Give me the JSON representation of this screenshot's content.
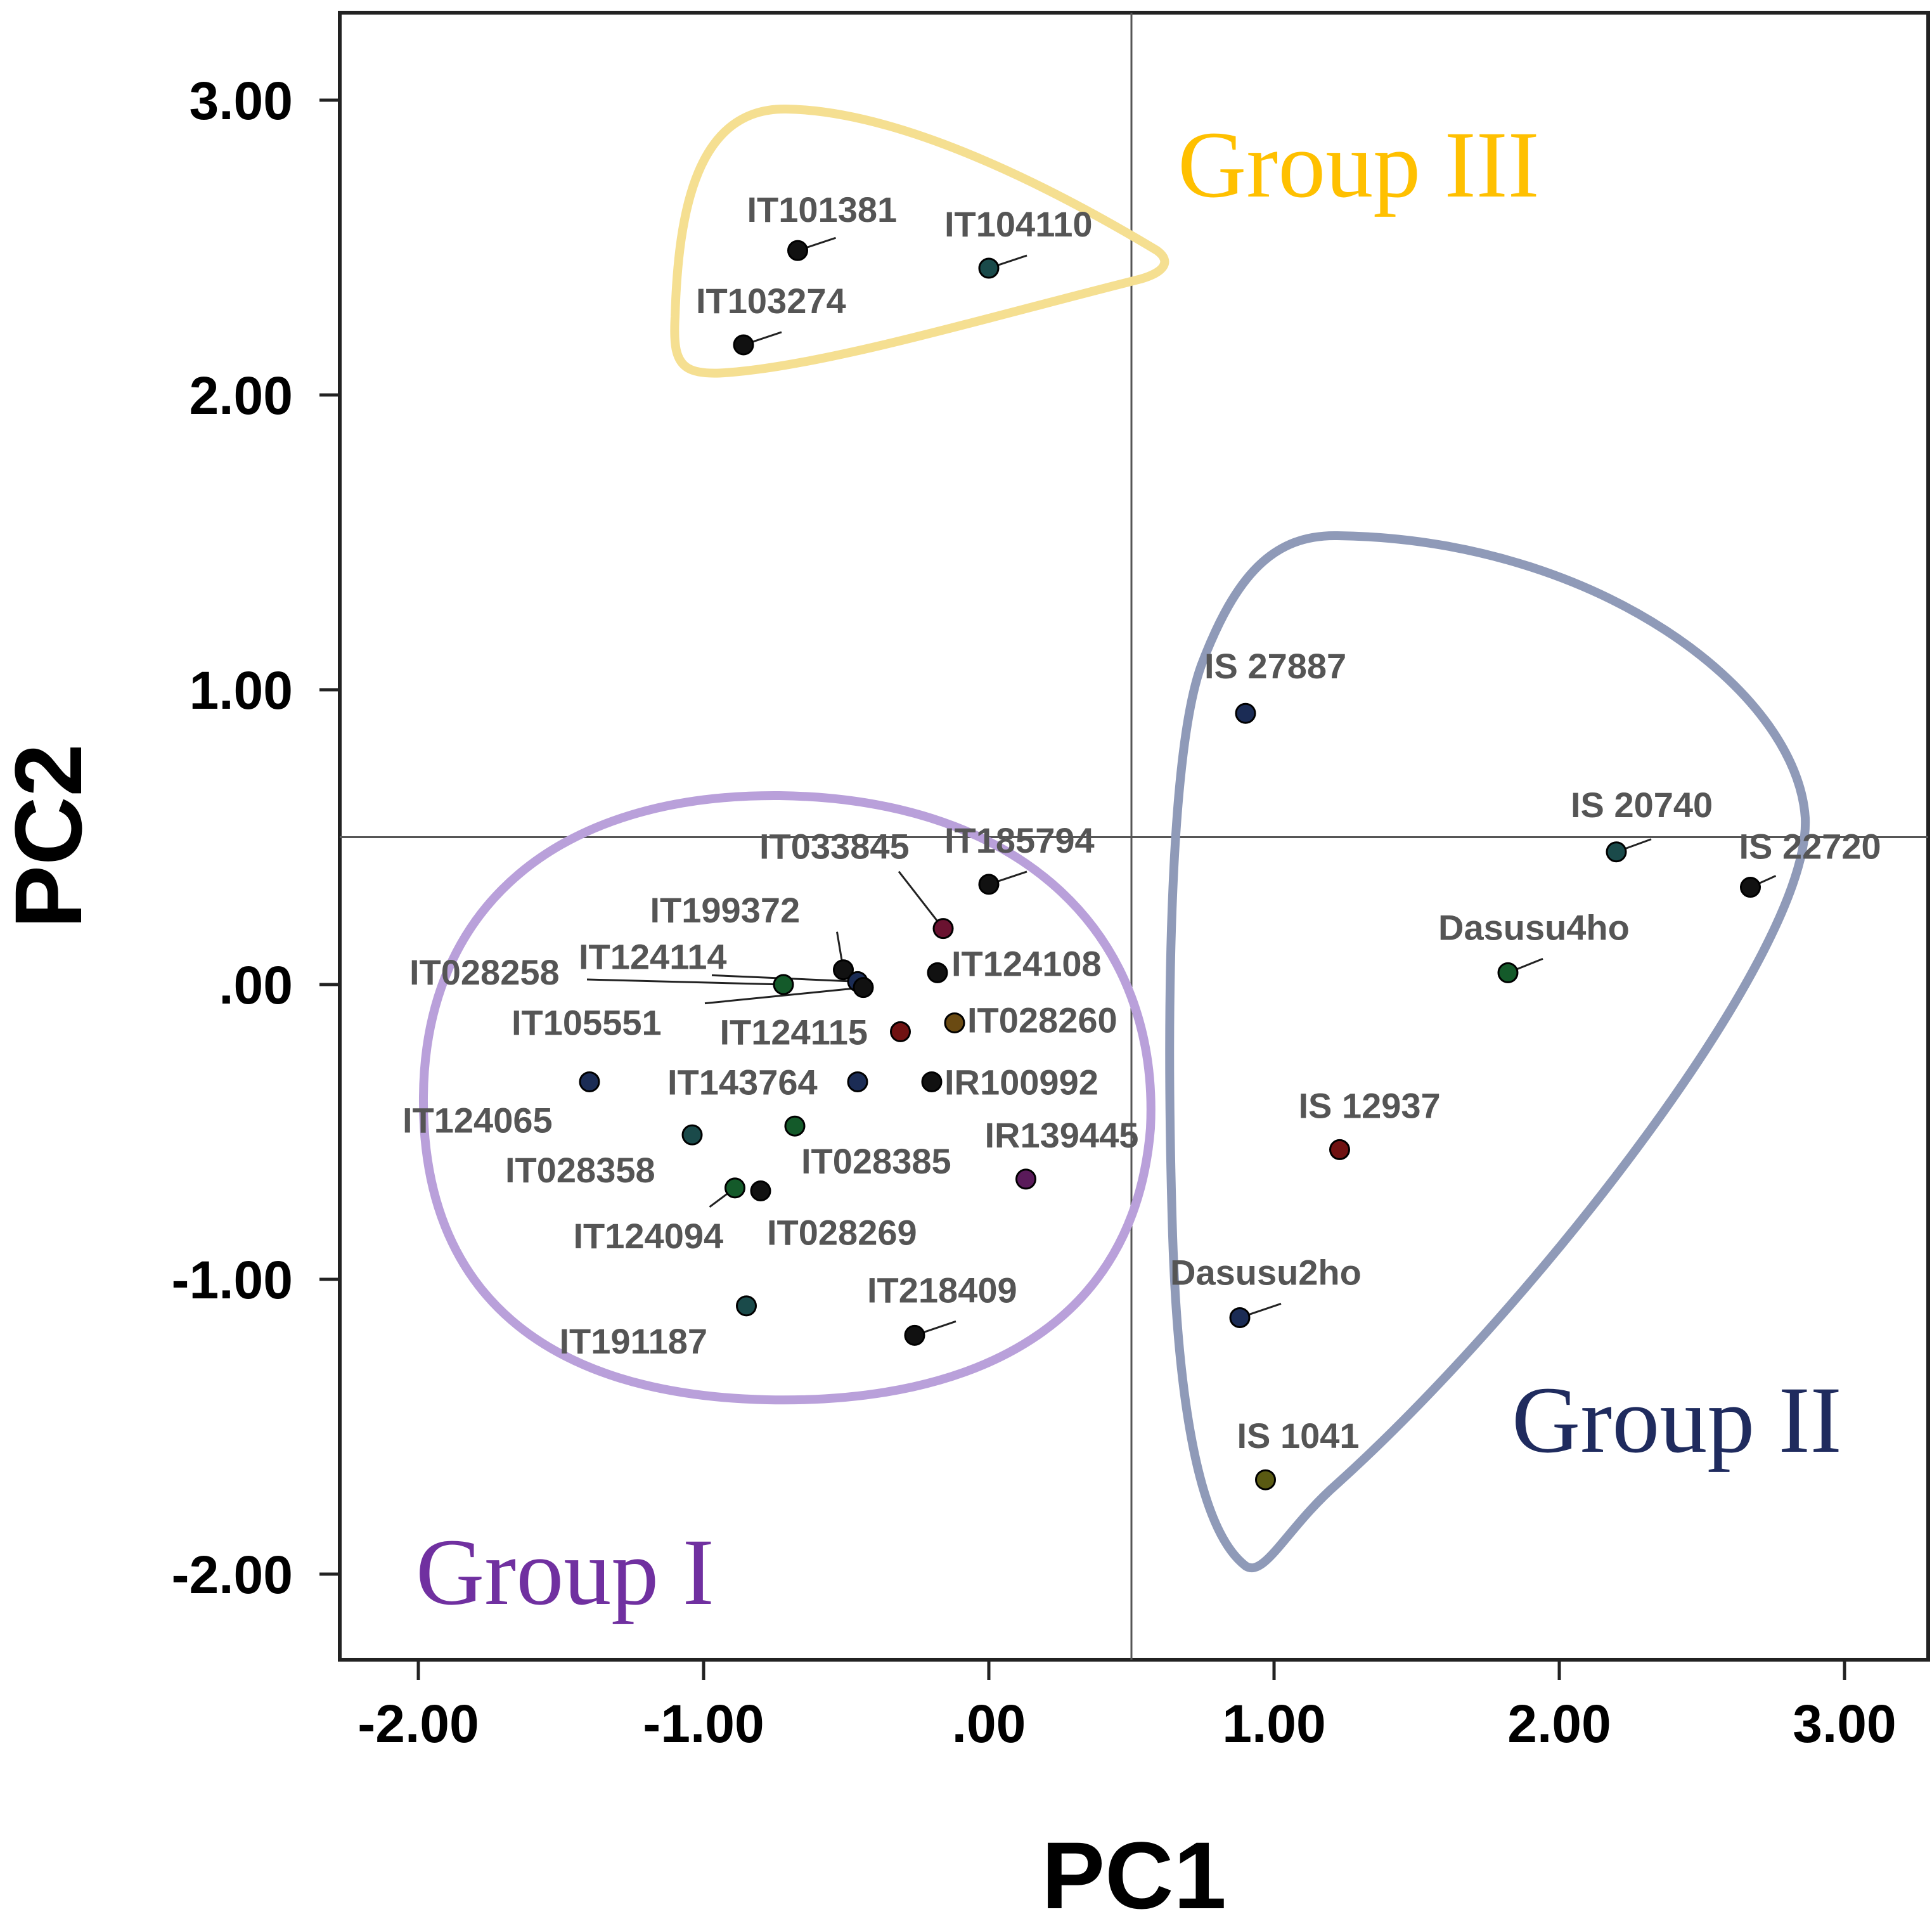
{
  "chart_data": {
    "type": "scatter",
    "xlabel": "PC1",
    "ylabel": "PC2",
    "xlim": [
      -2.28,
      3.28
    ],
    "ylim": [
      -2.28,
      3.28
    ],
    "xticks": [
      -2,
      -1,
      0,
      1,
      2,
      3
    ],
    "yticks": [
      -2,
      -1,
      0,
      1,
      2,
      3
    ],
    "xtick_labels": [
      "-2.00",
      "-1.00",
      ".00",
      "1.00",
      "2.00",
      "3.00"
    ],
    "ytick_labels": [
      "-2.00",
      "-1.00",
      ".00",
      "1.00",
      "2.00",
      "3.00"
    ],
    "reference_lines": {
      "x": 0.5,
      "y": 0.5
    },
    "points": [
      {
        "name": "IT101381",
        "x": -0.67,
        "y": 2.49,
        "color": "#111111"
      },
      {
        "name": "IT104110",
        "x": 0.0,
        "y": 2.43,
        "color": "#1a4a4a"
      },
      {
        "name": "IT103274",
        "x": -0.86,
        "y": 2.17,
        "color": "#111111"
      },
      {
        "name": "IS 27887",
        "x": 0.9,
        "y": 0.92,
        "color": "#1b2c55"
      },
      {
        "name": "IS 20740",
        "x": 2.2,
        "y": 0.45,
        "color": "#1a4a4a"
      },
      {
        "name": "IS 22720",
        "x": 2.67,
        "y": 0.33,
        "color": "#111111"
      },
      {
        "name": "Dasusu4ho",
        "x": 1.82,
        "y": 0.04,
        "color": "#145a2a"
      },
      {
        "name": "IS 12937",
        "x": 1.23,
        "y": -0.56,
        "color": "#701212"
      },
      {
        "name": "Dasusu2ho",
        "x": 0.88,
        "y": -1.13,
        "color": "#1b2c55"
      },
      {
        "name": "IS 1041",
        "x": 0.97,
        "y": -1.68,
        "color": "#5a5a12"
      },
      {
        "name": "IT185794",
        "x": 0.0,
        "y": 0.34,
        "color": "#111111"
      },
      {
        "name": "IT033845",
        "x": -0.16,
        "y": 0.19,
        "color": "#6a1230"
      },
      {
        "name": "IT199372",
        "x": -0.51,
        "y": 0.05,
        "color": "#111111"
      },
      {
        "name": "IT124108",
        "x": -0.18,
        "y": 0.04,
        "color": "#111111"
      },
      {
        "name": "IT124114",
        "x": -0.46,
        "y": 0.01,
        "color": "#1b2c55"
      },
      {
        "name": "IT028258",
        "x": -0.72,
        "y": 0.0,
        "color": "#145a2a"
      },
      {
        "name": "IT105551",
        "x": -0.44,
        "y": -0.01,
        "color": "#111111"
      },
      {
        "name": "IT124115",
        "x": -0.31,
        "y": -0.16,
        "color": "#701212"
      },
      {
        "name": "IT028260",
        "x": -0.12,
        "y": -0.13,
        "color": "#6a4a12"
      },
      {
        "name": "IT143764",
        "x": -0.46,
        "y": -0.33,
        "color": "#1b2c55"
      },
      {
        "name": "IR100992",
        "x": -0.2,
        "y": -0.33,
        "color": "#111111"
      },
      {
        "name": "IT124065",
        "x": -1.4,
        "y": -0.33,
        "color": "#1b2c55"
      },
      {
        "name": "IT028385",
        "x": -0.68,
        "y": -0.48,
        "color": "#145a2a"
      },
      {
        "name": "IT028358",
        "x": -1.04,
        "y": -0.51,
        "color": "#1a4a4a"
      },
      {
        "name": "IR139445",
        "x": 0.13,
        "y": -0.66,
        "color": "#5a1a5a"
      },
      {
        "name": "IT124094",
        "x": -0.89,
        "y": -0.69,
        "color": "#145a2a"
      },
      {
        "name": "IT028269",
        "x": -0.8,
        "y": -0.7,
        "color": "#111111"
      },
      {
        "name": "IT191187",
        "x": -0.85,
        "y": -1.09,
        "color": "#1a4a4a"
      },
      {
        "name": "IT218409",
        "x": -0.26,
        "y": -1.19,
        "color": "#111111"
      }
    ],
    "groups": [
      {
        "name": "Group I",
        "color": "#7030a0",
        "outline": "#b9a0da"
      },
      {
        "name": "Group II",
        "color": "#1f2b5e",
        "outline": "#8f9ab8"
      },
      {
        "name": "Group III",
        "color": "#ffc000",
        "outline": "#f5df91"
      }
    ]
  }
}
